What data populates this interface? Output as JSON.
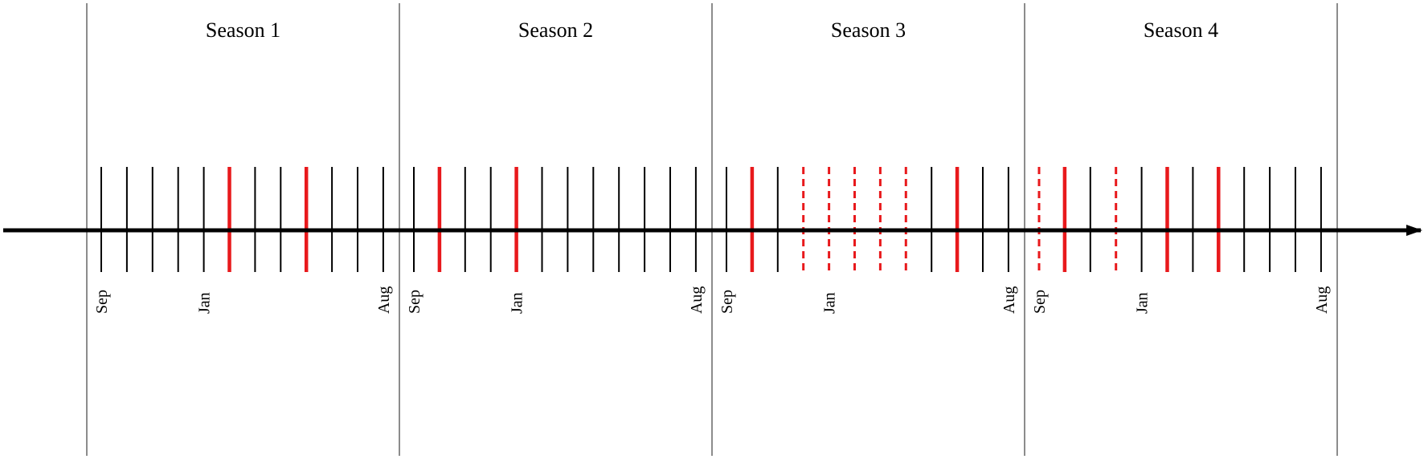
{
  "seasons": [
    {
      "title": "Season 1",
      "month_labels": [
        "Sep",
        "Jan",
        "Aug"
      ],
      "highlight_solid": [
        5,
        8
      ],
      "highlight_dashed": []
    },
    {
      "title": "Season 2",
      "month_labels": [
        "Sep",
        "Jan",
        "Aug"
      ],
      "highlight_solid": [
        1,
        4
      ],
      "highlight_dashed": []
    },
    {
      "title": "Season 3",
      "month_labels": [
        "Sep",
        "Jan",
        "Aug"
      ],
      "highlight_solid": [
        1,
        9
      ],
      "highlight_dashed": [
        3,
        4,
        5,
        6,
        7
      ]
    },
    {
      "title": "Season 4",
      "month_labels": [
        "Sep",
        "Jan",
        "Aug"
      ],
      "highlight_solid": [
        1,
        5,
        7
      ],
      "highlight_dashed": [
        0,
        3
      ]
    }
  ],
  "months_per_season": 12,
  "labeled_month_indices": [
    0,
    4,
    11
  ],
  "colors": {
    "axis": "#000000",
    "tick": "#000000",
    "divider": "#8c8c8c",
    "highlight": "#e8191c"
  }
}
